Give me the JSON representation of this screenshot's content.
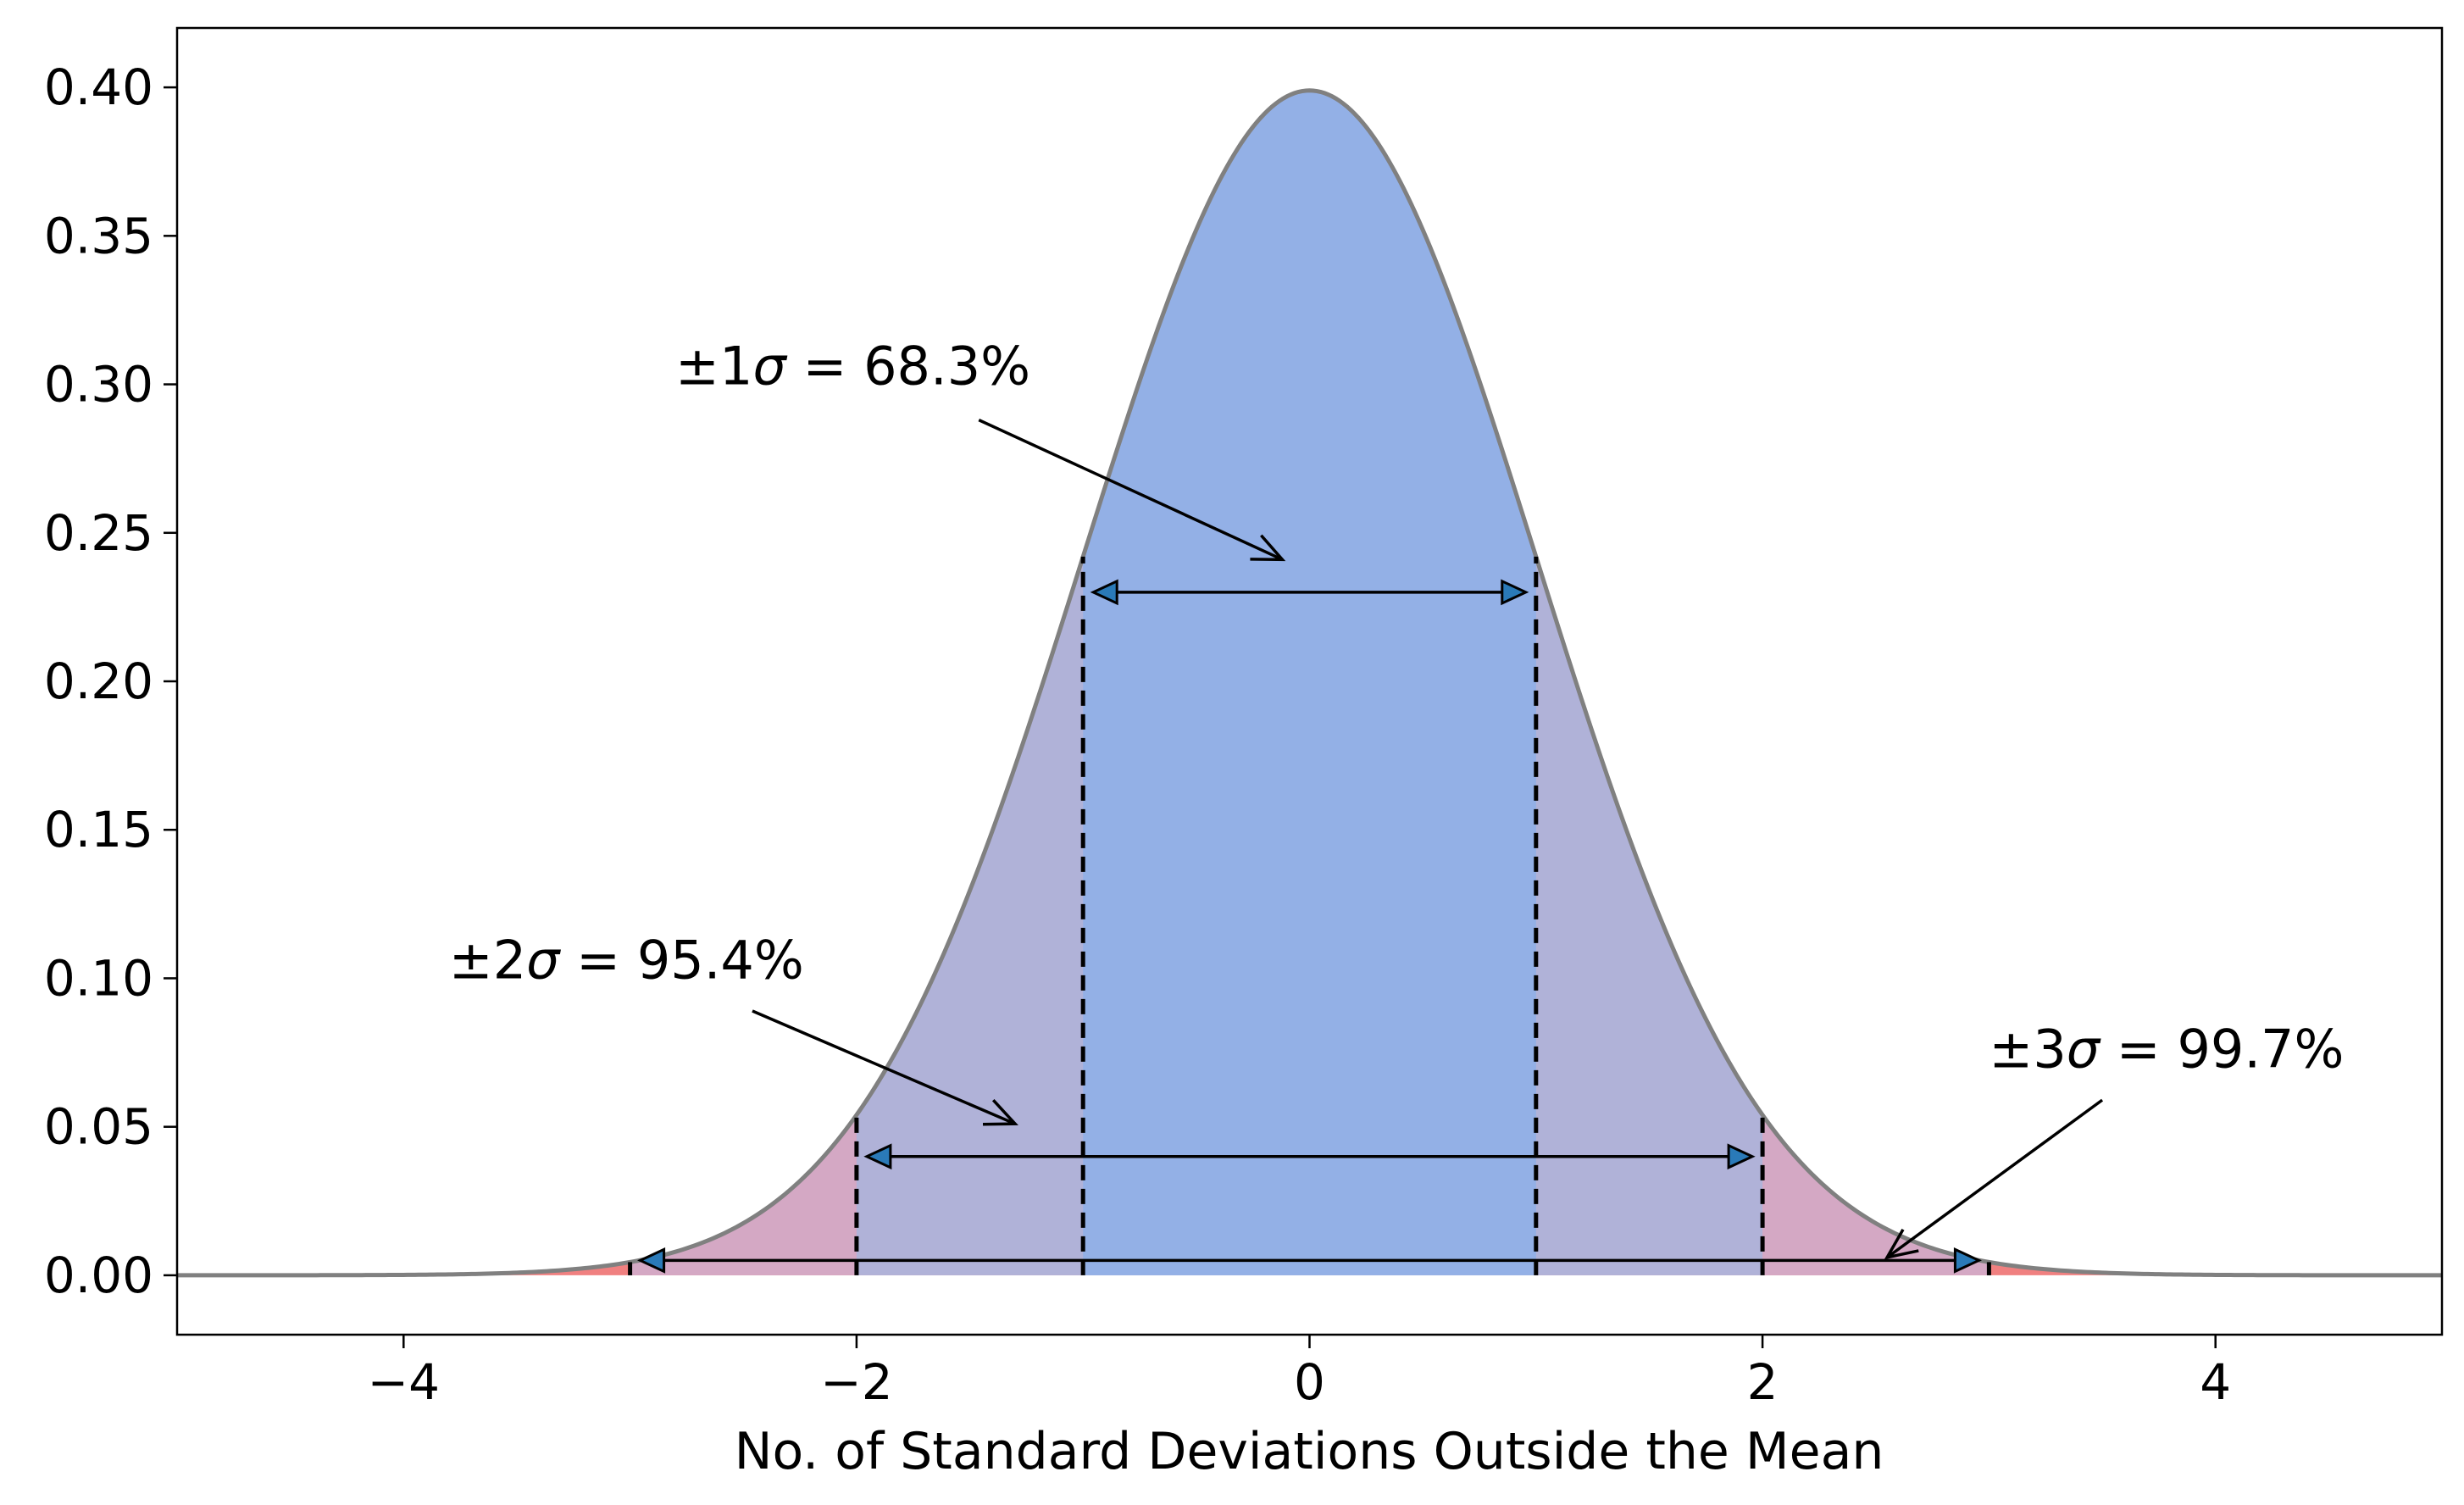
{
  "chart_data": {
    "type": "area",
    "title": "",
    "xlabel": "No. of Standard Deviations Outside the Mean",
    "ylabel": "",
    "xlim": [
      -5,
      5
    ],
    "ylim": [
      -0.02,
      0.42
    ],
    "x_ticks": [
      -4,
      -2,
      0,
      2,
      4
    ],
    "x_tick_labels": [
      "−4",
      "−2",
      "0",
      "2",
      "4"
    ],
    "y_ticks": [
      0.0,
      0.05,
      0.1,
      0.15,
      0.2,
      0.25,
      0.3,
      0.35,
      0.4
    ],
    "y_tick_labels": [
      "0.00",
      "0.05",
      "0.10",
      "0.15",
      "0.20",
      "0.25",
      "0.30",
      "0.35",
      "0.40"
    ],
    "grid": false,
    "legend": "none",
    "curve": {
      "distribution": "standard normal",
      "mean": 0,
      "sd": 1,
      "x_range": [
        -5,
        5
      ],
      "color": "#808080"
    },
    "regions": [
      {
        "from": -5,
        "to": 5,
        "color": "#f08080"
      },
      {
        "from": -3,
        "to": 3,
        "color": "#d4a8c4"
      },
      {
        "from": -2,
        "to": 2,
        "color": "#b0b2d8"
      },
      {
        "from": -1,
        "to": 1,
        "color": "#93b0e6"
      }
    ],
    "dashed_lines_x": [
      -3,
      -2,
      -1,
      1,
      2,
      3
    ],
    "ranges": [
      {
        "from": -1,
        "to": 1,
        "y": 0.23,
        "label_left": "±1",
        "label_sigma": "σ",
        "label_right": " = 68.3%",
        "label_x": -2.8,
        "label_y": 0.3,
        "arrow_from": [
          -1.46,
          0.288
        ],
        "arrow_to": [
          -0.12,
          0.241
        ]
      },
      {
        "from": -2,
        "to": 2,
        "y": 0.04,
        "label_left": "±2",
        "label_sigma": "σ",
        "label_right": " = 95.4%",
        "label_x": -3.8,
        "label_y": 0.1,
        "arrow_from": [
          -2.46,
          0.089
        ],
        "arrow_to": [
          -1.3,
          0.051
        ]
      },
      {
        "from": -3,
        "to": 3,
        "y": 0.005,
        "label_left": "±3",
        "label_sigma": "σ",
        "label_right": " = 99.7%",
        "label_x": 3.0,
        "label_y": 0.07,
        "arrow_from": [
          3.5,
          0.059
        ],
        "arrow_to": [
          2.55,
          0.006
        ]
      }
    ],
    "arrowhead_color": "#2a7ab8"
  }
}
